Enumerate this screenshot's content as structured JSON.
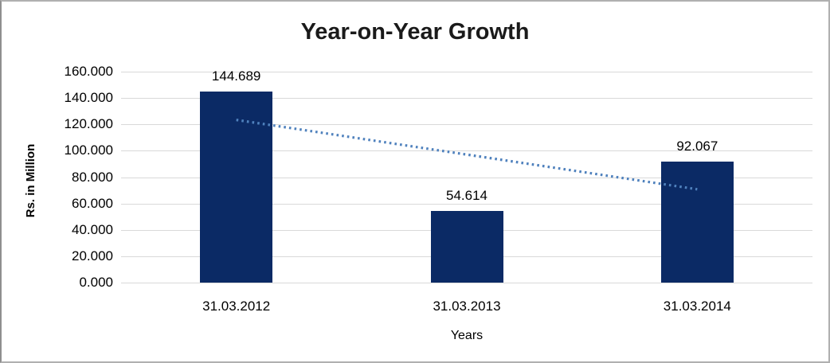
{
  "chart_data": {
    "type": "bar",
    "title": "Year-on-Year Growth",
    "categories": [
      "31.03.2012",
      "31.03.2013",
      "31.03.2014"
    ],
    "values": [
      144.689,
      54.614,
      92.067
    ],
    "data_labels": [
      "144.689",
      "54.614",
      "92.067"
    ],
    "xlabel": "Years",
    "ylabel": "Rs. in Million",
    "ylim": [
      0,
      160
    ],
    "ytick_interval": 20,
    "ytick_labels": [
      "0.000",
      "20.000",
      "40.000",
      "60.000",
      "80.000",
      "100.000",
      "120.000",
      "140.000",
      "160.000"
    ],
    "grid": true,
    "legend": "none",
    "trendline": {
      "type": "linear",
      "style": "dotted",
      "start_value": 123.4,
      "end_value": 70.8
    },
    "colors": {
      "bar": "#0b2a65",
      "trendline": "#4f81bd",
      "gridline": "#d9d9d9",
      "title_text": "#1a1a1a",
      "axis_text": "#000000"
    }
  }
}
